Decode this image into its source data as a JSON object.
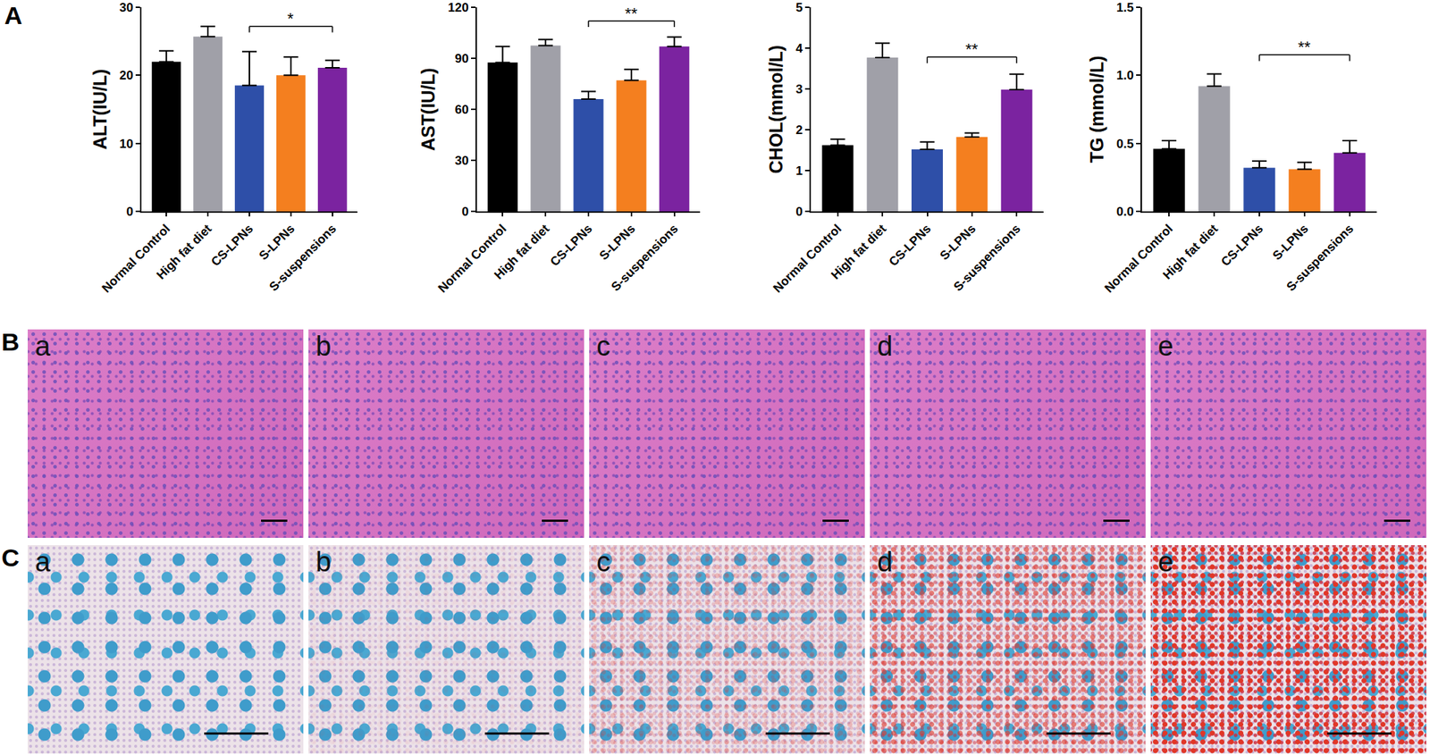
{
  "panel_label": "A",
  "chart_data": [
    {
      "type": "bar",
      "y_label": "ALT(IU/L)",
      "categories": [
        "Normal Control",
        "High fat diet",
        "CS-LPNs",
        "S-LPNs",
        "S-suspensions"
      ],
      "values": [
        22,
        25.7,
        18.5,
        20,
        21.1
      ],
      "errors": [
        1.6,
        1.5,
        5,
        2.7,
        1.1
      ],
      "colors": [
        "#000000",
        "#a0a0a8",
        "#2e4fa8",
        "#f47f1f",
        "#7b23a0"
      ],
      "ylim": [
        0,
        30
      ],
      "yticks": [
        0,
        10,
        20,
        30
      ],
      "significance": {
        "from": "CS-LPNs",
        "to": "S-suspensions",
        "label": "*",
        "y": 27.2
      }
    },
    {
      "type": "bar",
      "y_label": "AST(IU/L)",
      "categories": [
        "Normal Control",
        "High fat diet",
        "CS-LPNs",
        "S-LPNs",
        "S-suspensions"
      ],
      "values": [
        87.5,
        97.5,
        66,
        77,
        97
      ],
      "errors": [
        9.5,
        3.5,
        4.5,
        6.5,
        5.5
      ],
      "colors": [
        "#000000",
        "#a0a0a8",
        "#2e4fa8",
        "#f47f1f",
        "#7b23a0"
      ],
      "ylim": [
        0,
        120
      ],
      "yticks": [
        0,
        30,
        60,
        90,
        120
      ],
      "significance": {
        "from": "CS-LPNs",
        "to": "S-suspensions",
        "label": "**",
        "y": 112
      }
    },
    {
      "type": "bar",
      "y_label": "CHOL(mmol/L)",
      "categories": [
        "Normal Control",
        "High fat diet",
        "CS-LPNs",
        "S-LPNs",
        "S-suspensions"
      ],
      "values": [
        1.62,
        3.77,
        1.52,
        1.82,
        2.98
      ],
      "errors": [
        0.15,
        0.35,
        0.18,
        0.1,
        0.38
      ],
      "colors": [
        "#000000",
        "#a0a0a8",
        "#2e4fa8",
        "#f47f1f",
        "#7b23a0"
      ],
      "ylim": [
        0,
        5
      ],
      "yticks": [
        0,
        1,
        2,
        3,
        4,
        5
      ],
      "significance": {
        "from": "CS-LPNs",
        "to": "S-suspensions",
        "label": "**",
        "y": 3.78
      }
    },
    {
      "type": "bar",
      "y_label": "TG (mmol/L)",
      "categories": [
        "Normal Control",
        "High fat diet",
        "CS-LPNs",
        "S-LPNs",
        "S-suspensions"
      ],
      "values": [
        0.46,
        0.92,
        0.32,
        0.31,
        0.43
      ],
      "errors": [
        0.06,
        0.09,
        0.05,
        0.05,
        0.09
      ],
      "colors": [
        "#000000",
        "#a0a0a8",
        "#2e4fa8",
        "#f47f1f",
        "#7b23a0"
      ],
      "ylim": [
        0,
        1.5
      ],
      "yticks": [
        {
          "value": 0,
          "label": "0.0"
        },
        0.5,
        {
          "value": 1,
          "label": "1.0"
        },
        1.5
      ],
      "significance": {
        "from": "CS-LPNs",
        "to": "S-suspensions",
        "label": "**",
        "y": 1.15
      }
    }
  ],
  "histology": [
    {
      "label": "B",
      "panels": [
        "a",
        "b",
        "c",
        "d",
        "e"
      ]
    },
    {
      "label": "C",
      "panels": [
        "a",
        "b",
        "c",
        "d",
        "e"
      ]
    }
  ]
}
